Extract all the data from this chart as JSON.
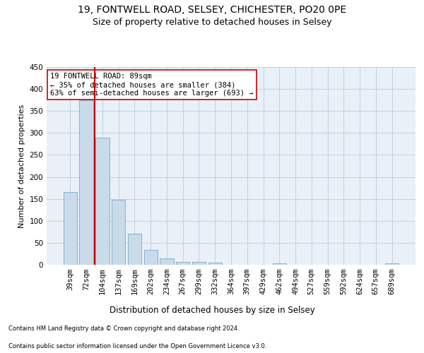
{
  "title1": "19, FONTWELL ROAD, SELSEY, CHICHESTER, PO20 0PE",
  "title2": "Size of property relative to detached houses in Selsey",
  "xlabel": "Distribution of detached houses by size in Selsey",
  "ylabel": "Number of detached properties",
  "categories": [
    "39sqm",
    "72sqm",
    "104sqm",
    "137sqm",
    "169sqm",
    "202sqm",
    "234sqm",
    "267sqm",
    "299sqm",
    "332sqm",
    "364sqm",
    "397sqm",
    "429sqm",
    "462sqm",
    "494sqm",
    "527sqm",
    "559sqm",
    "592sqm",
    "624sqm",
    "657sqm",
    "689sqm"
  ],
  "values": [
    165,
    375,
    290,
    148,
    70,
    33,
    14,
    7,
    6,
    5,
    0,
    0,
    0,
    4,
    0,
    0,
    0,
    0,
    0,
    0,
    4
  ],
  "bar_color": "#c9daea",
  "bar_edge_color": "#7aaac8",
  "vline_color": "#cc0000",
  "vline_x": 1.5,
  "annotation_line1": "19 FONTWELL ROAD: 89sqm",
  "annotation_line2": "← 35% of detached houses are smaller (384)",
  "annotation_line3": "63% of semi-detached houses are larger (693) →",
  "annotation_box_color": "#ffffff",
  "annotation_box_edge_color": "#cc0000",
  "ylim": [
    0,
    450
  ],
  "yticks": [
    0,
    50,
    100,
    150,
    200,
    250,
    300,
    350,
    400,
    450
  ],
  "footer1": "Contains HM Land Registry data © Crown copyright and database right 2024.",
  "footer2": "Contains public sector information licensed under the Open Government Licence v3.0.",
  "plot_bg_color": "#e8f0f8",
  "grid_color": "#c0ccd8",
  "title1_fontsize": 10,
  "title2_fontsize": 9,
  "xlabel_fontsize": 8.5,
  "ylabel_fontsize": 8,
  "tick_fontsize": 7.5,
  "annotation_fontsize": 7.5,
  "footer_fontsize": 6
}
